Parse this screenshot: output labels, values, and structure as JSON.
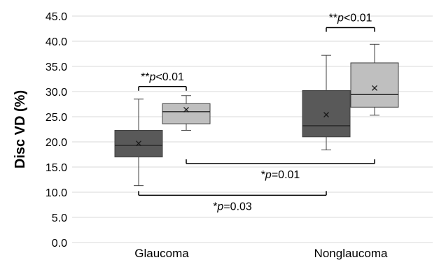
{
  "chart_data": {
    "type": "box",
    "ylabel": "Disc VD (%)",
    "ylim": [
      0,
      45
    ],
    "y_ticks": [
      "0.0",
      "5.0",
      "10.0",
      "15.0",
      "20.0",
      "25.0",
      "30.0",
      "35.0",
      "40.0",
      "45.0"
    ],
    "categories": [
      "Glaucoma",
      "Nonglaucoma"
    ],
    "grid": true,
    "series_colors": [
      "#595959",
      "#bfbfbf"
    ],
    "boxes": [
      {
        "category": "Glaucoma",
        "group": 0,
        "whisker_low": 11.3,
        "q1": 17.0,
        "median": 19.3,
        "q3": 22.3,
        "whisker_high": 28.5,
        "mean": 19.7
      },
      {
        "category": "Glaucoma",
        "group": 1,
        "whisker_low": 22.3,
        "q1": 23.6,
        "median": 26.0,
        "q3": 27.6,
        "whisker_high": 29.2,
        "mean": 26.4
      },
      {
        "category": "Nonglaucoma",
        "group": 0,
        "whisker_low": 18.4,
        "q1": 21.0,
        "median": 23.2,
        "q3": 30.2,
        "whisker_high": 37.2,
        "mean": 25.4
      },
      {
        "category": "Nonglaucoma",
        "group": 1,
        "whisker_low": 25.3,
        "q1": 26.9,
        "median": 29.4,
        "q3": 35.7,
        "whisker_high": 39.4,
        "mean": 30.7
      }
    ],
    "annotations": [
      {
        "from_box": 0,
        "to_box": 1,
        "y": 31.0,
        "stars": "**",
        "p_symbol": "p",
        "p_rest": "<0.01",
        "label_position": "above"
      },
      {
        "from_box": 2,
        "to_box": 3,
        "y": 42.7,
        "stars": "**",
        "p_symbol": "p",
        "p_rest": "<0.01",
        "label_position": "above"
      },
      {
        "from_box": 1,
        "to_box": 3,
        "y": 15.7,
        "stars": "*",
        "p_symbol": "p",
        "p_rest": "=0.01",
        "label_position": "below"
      },
      {
        "from_box": 0,
        "to_box": 2,
        "y": 9.4,
        "stars": "*",
        "p_symbol": "p",
        "p_rest": "=0.03",
        "label_position": "below"
      }
    ]
  }
}
